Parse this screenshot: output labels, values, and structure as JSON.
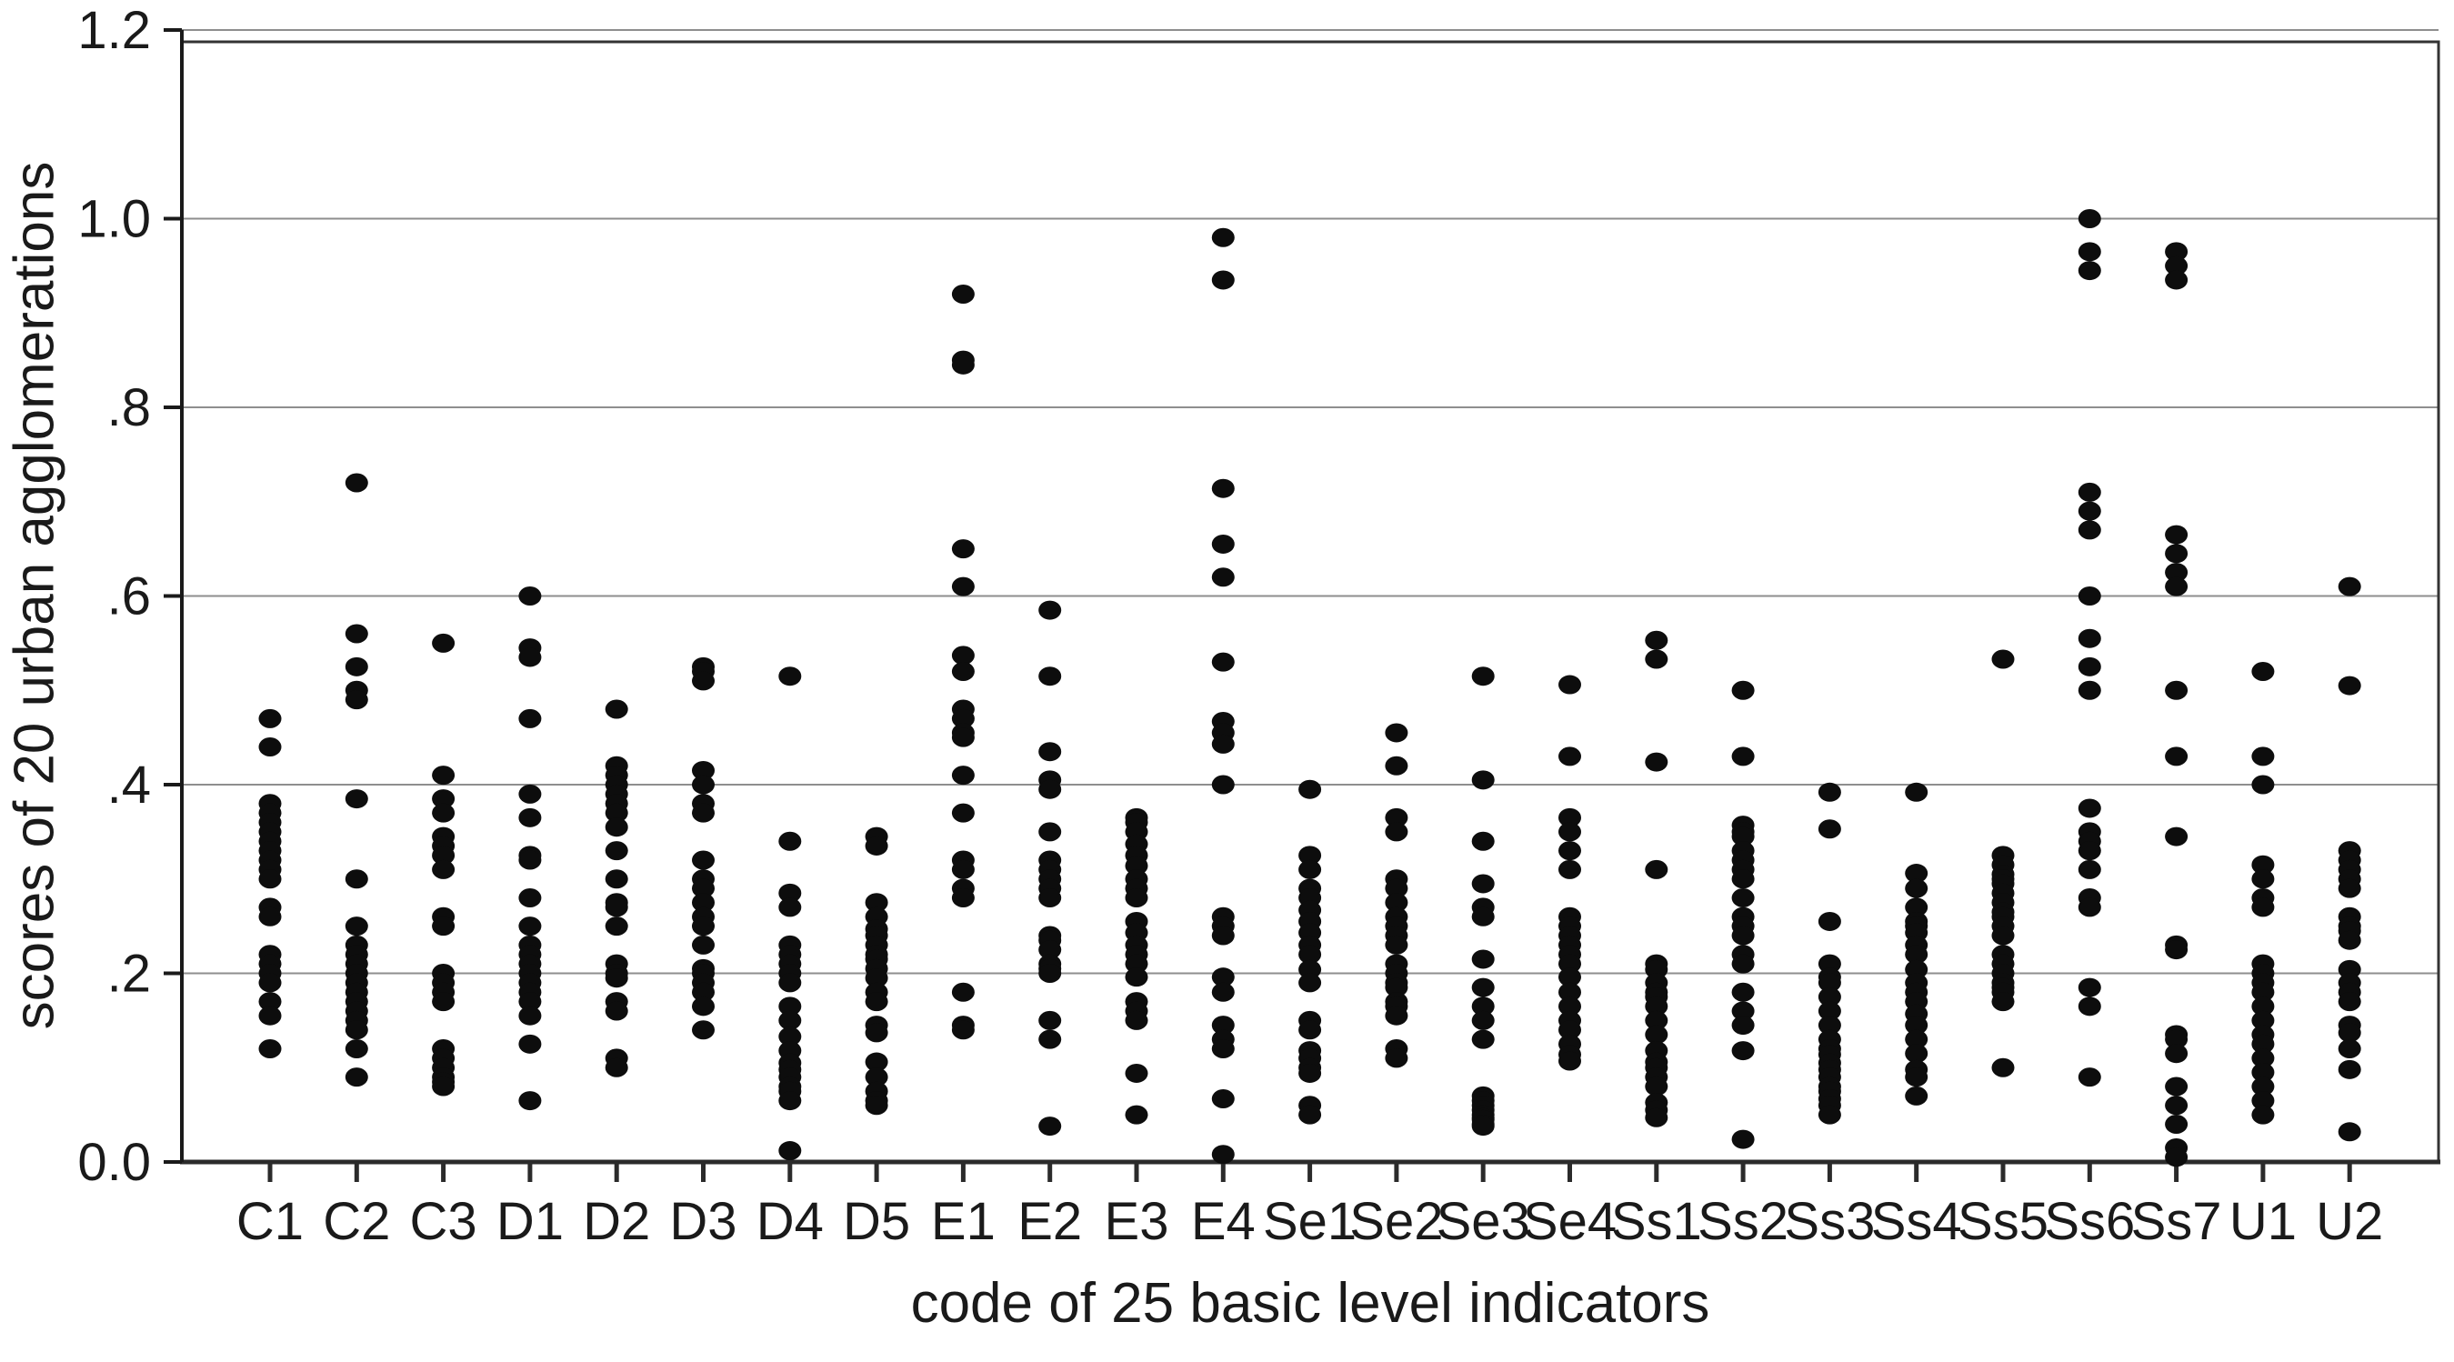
{
  "figure": {
    "background": "#ffffff",
    "dot_color": "#0d0d0d",
    "grid_color": "#8e8e8e",
    "frame_color": "#333333",
    "axis_color": "#1a1a1a",
    "text_color": "#1a1a1a"
  },
  "chart_data": {
    "type": "scatter",
    "title": "",
    "xlabel": "code of 25 basic level indicators",
    "ylabel": "scores of 20 urban agglomerations",
    "ylim": [
      0,
      1.2
    ],
    "grid": "horizontal gridlines every 0.2",
    "legend": "none",
    "yticks": [
      {
        "label": "0.0",
        "value": 0.0
      },
      {
        "label": ".2",
        "value": 0.2
      },
      {
        "label": ".4",
        "value": 0.4
      },
      {
        "label": ".6",
        "value": 0.6
      },
      {
        "label": ".8",
        "value": 0.8
      },
      {
        "label": "1.0",
        "value": 1.0
      },
      {
        "label": "1.2",
        "value": 1.2
      }
    ],
    "categories": [
      "C1",
      "C2",
      "C3",
      "D1",
      "D2",
      "D3",
      "D4",
      "D5",
      "E1",
      "E2",
      "E3",
      "E4",
      "Se1",
      "Se2",
      "Se3",
      "Se4",
      "Ss1",
      "Ss2",
      "Ss3",
      "Ss4",
      "Ss5",
      "Ss6",
      "Ss7",
      "U1",
      "U2"
    ],
    "series": [
      {
        "name": "C1",
        "values": [
          0.47,
          0.44,
          0.38,
          0.37,
          0.36,
          0.35,
          0.34,
          0.33,
          0.32,
          0.31,
          0.3,
          0.27,
          0.26,
          0.22,
          0.21,
          0.2,
          0.19,
          0.17,
          0.155,
          0.12
        ]
      },
      {
        "name": "C2",
        "values": [
          0.72,
          0.56,
          0.525,
          0.5,
          0.49,
          0.385,
          0.3,
          0.25,
          0.23,
          0.22,
          0.21,
          0.2,
          0.19,
          0.18,
          0.17,
          0.16,
          0.15,
          0.14,
          0.12,
          0.09
        ]
      },
      {
        "name": "C3",
        "values": [
          0.55,
          0.41,
          0.385,
          0.37,
          0.345,
          0.335,
          0.325,
          0.31,
          0.26,
          0.25,
          0.2,
          0.19,
          0.18,
          0.17,
          0.12,
          0.11,
          0.1,
          0.09,
          0.085,
          0.08
        ]
      },
      {
        "name": "D1",
        "values": [
          0.6,
          0.545,
          0.535,
          0.47,
          0.39,
          0.365,
          0.325,
          0.32,
          0.28,
          0.25,
          0.23,
          0.22,
          0.21,
          0.2,
          0.19,
          0.18,
          0.17,
          0.155,
          0.125,
          0.065
        ]
      },
      {
        "name": "D2",
        "values": [
          0.48,
          0.42,
          0.41,
          0.4,
          0.39,
          0.38,
          0.37,
          0.355,
          0.33,
          0.3,
          0.275,
          0.27,
          0.25,
          0.21,
          0.2,
          0.195,
          0.17,
          0.16,
          0.11,
          0.1
        ]
      },
      {
        "name": "D3",
        "values": [
          0.525,
          0.52,
          0.51,
          0.415,
          0.4,
          0.38,
          0.37,
          0.32,
          0.3,
          0.29,
          0.275,
          0.26,
          0.25,
          0.23,
          0.205,
          0.2,
          0.19,
          0.18,
          0.165,
          0.14
        ]
      },
      {
        "name": "D4",
        "values": [
          0.515,
          0.34,
          0.285,
          0.27,
          0.23,
          0.22,
          0.21,
          0.2,
          0.19,
          0.165,
          0.15,
          0.133,
          0.118,
          0.105,
          0.098,
          0.09,
          0.08,
          0.075,
          0.065,
          0.012
        ]
      },
      {
        "name": "D5",
        "values": [
          0.345,
          0.335,
          0.275,
          0.26,
          0.247,
          0.24,
          0.23,
          0.22,
          0.215,
          0.205,
          0.195,
          0.18,
          0.17,
          0.145,
          0.137,
          0.106,
          0.09,
          0.075,
          0.065,
          0.06
        ]
      },
      {
        "name": "E1",
        "values": [
          0.92,
          0.85,
          0.845,
          0.65,
          0.61,
          0.537,
          0.52,
          0.48,
          0.47,
          0.455,
          0.45,
          0.41,
          0.37,
          0.32,
          0.31,
          0.29,
          0.28,
          0.18,
          0.145,
          0.14
        ]
      },
      {
        "name": "E2",
        "values": [
          0.585,
          0.515,
          0.435,
          0.405,
          0.395,
          0.35,
          0.32,
          0.31,
          0.3,
          0.29,
          0.28,
          0.24,
          0.235,
          0.225,
          0.21,
          0.205,
          0.2,
          0.15,
          0.13,
          0.038
        ]
      },
      {
        "name": "E3",
        "values": [
          0.365,
          0.36,
          0.35,
          0.337,
          0.325,
          0.314,
          0.3,
          0.29,
          0.28,
          0.255,
          0.243,
          0.23,
          0.22,
          0.21,
          0.196,
          0.17,
          0.16,
          0.15,
          0.094,
          0.05
        ]
      },
      {
        "name": "E4",
        "values": [
          0.98,
          0.935,
          0.714,
          0.655,
          0.62,
          0.53,
          0.467,
          0.455,
          0.443,
          0.4,
          0.26,
          0.25,
          0.24,
          0.196,
          0.18,
          0.145,
          0.13,
          0.12,
          0.067,
          0.008
        ]
      },
      {
        "name": "Se1",
        "values": [
          0.395,
          0.325,
          0.31,
          0.29,
          0.28,
          0.267,
          0.255,
          0.243,
          0.23,
          0.22,
          0.204,
          0.19,
          0.15,
          0.14,
          0.118,
          0.11,
          0.1,
          0.094,
          0.06,
          0.05
        ]
      },
      {
        "name": "Se2",
        "values": [
          0.455,
          0.42,
          0.365,
          0.35,
          0.3,
          0.29,
          0.275,
          0.26,
          0.25,
          0.24,
          0.23,
          0.21,
          0.2,
          0.19,
          0.185,
          0.17,
          0.165,
          0.155,
          0.12,
          0.11
        ]
      },
      {
        "name": "Se3",
        "values": [
          0.515,
          0.405,
          0.34,
          0.295,
          0.27,
          0.26,
          0.215,
          0.185,
          0.165,
          0.15,
          0.13,
          0.07,
          0.065,
          0.06,
          0.055,
          0.05,
          0.047,
          0.045,
          0.04,
          0.038
        ]
      },
      {
        "name": "Se4",
        "values": [
          0.506,
          0.43,
          0.365,
          0.35,
          0.33,
          0.31,
          0.26,
          0.25,
          0.24,
          0.23,
          0.22,
          0.21,
          0.196,
          0.18,
          0.165,
          0.15,
          0.14,
          0.125,
          0.114,
          0.107
        ]
      },
      {
        "name": "Ss1",
        "values": [
          0.553,
          0.533,
          0.424,
          0.31,
          0.21,
          0.204,
          0.19,
          0.18,
          0.175,
          0.165,
          0.15,
          0.135,
          0.118,
          0.106,
          0.1,
          0.09,
          0.08,
          0.063,
          0.055,
          0.047
        ]
      },
      {
        "name": "Ss2",
        "values": [
          0.5,
          0.43,
          0.357,
          0.35,
          0.345,
          0.33,
          0.32,
          0.31,
          0.3,
          0.28,
          0.26,
          0.25,
          0.24,
          0.22,
          0.21,
          0.18,
          0.16,
          0.145,
          0.118,
          0.024
        ]
      },
      {
        "name": "Ss3",
        "values": [
          0.392,
          0.353,
          0.255,
          0.21,
          0.196,
          0.19,
          0.175,
          0.16,
          0.145,
          0.13,
          0.12,
          0.114,
          0.105,
          0.098,
          0.09,
          0.08,
          0.075,
          0.067,
          0.06,
          0.05
        ]
      },
      {
        "name": "Ss4",
        "values": [
          0.392,
          0.306,
          0.29,
          0.27,
          0.255,
          0.25,
          0.243,
          0.23,
          0.22,
          0.204,
          0.19,
          0.18,
          0.17,
          0.157,
          0.145,
          0.13,
          0.115,
          0.098,
          0.09,
          0.07
        ]
      },
      {
        "name": "Ss5",
        "values": [
          0.533,
          0.325,
          0.315,
          0.305,
          0.3,
          0.295,
          0.285,
          0.275,
          0.265,
          0.26,
          0.25,
          0.24,
          0.22,
          0.21,
          0.2,
          0.19,
          0.185,
          0.18,
          0.17,
          0.1
        ]
      },
      {
        "name": "Ss6",
        "values": [
          1.0,
          0.965,
          0.945,
          0.71,
          0.69,
          0.67,
          0.6,
          0.555,
          0.525,
          0.5,
          0.375,
          0.35,
          0.34,
          0.33,
          0.31,
          0.28,
          0.27,
          0.185,
          0.165,
          0.09
        ]
      },
      {
        "name": "Ss7",
        "values": [
          0.965,
          0.95,
          0.935,
          0.665,
          0.645,
          0.625,
          0.61,
          0.5,
          0.43,
          0.345,
          0.23,
          0.225,
          0.135,
          0.13,
          0.115,
          0.08,
          0.06,
          0.04,
          0.015,
          0.005
        ]
      },
      {
        "name": "U1",
        "values": [
          0.52,
          0.43,
          0.4,
          0.315,
          0.3,
          0.28,
          0.27,
          0.21,
          0.2,
          0.19,
          0.18,
          0.165,
          0.15,
          0.135,
          0.125,
          0.11,
          0.095,
          0.08,
          0.065,
          0.05
        ]
      },
      {
        "name": "U2",
        "values": [
          0.61,
          0.505,
          0.33,
          0.32,
          0.31,
          0.3,
          0.29,
          0.26,
          0.25,
          0.245,
          0.235,
          0.204,
          0.19,
          0.18,
          0.17,
          0.145,
          0.137,
          0.12,
          0.098,
          0.032
        ]
      }
    ]
  }
}
